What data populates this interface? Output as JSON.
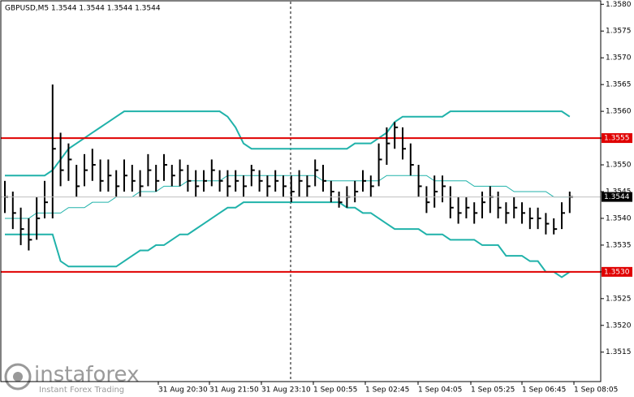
{
  "chart_data": {
    "type": "ohlc",
    "title": "GBPUSD,M5 1.3544 1.3544 1.3544 1.3544",
    "bar_color": "#000000",
    "high": [
      1.3547,
      1.3545,
      1.3542,
      1.354,
      1.3544,
      1.3547,
      1.3565,
      1.3556,
      1.3554,
      1.355,
      1.3552,
      1.3553,
      1.3551,
      1.3551,
      1.3549,
      1.3551,
      1.355,
      1.3549,
      1.3552,
      1.355,
      1.3552,
      1.355,
      1.3551,
      1.355,
      1.3549,
      1.3549,
      1.3551,
      1.3549,
      1.3549,
      1.3549,
      1.3548,
      1.355,
      1.3549,
      1.3548,
      1.3549,
      1.3548,
      1.3548,
      1.3549,
      1.3548,
      1.3551,
      1.355,
      1.3547,
      1.3545,
      1.3546,
      1.3547,
      1.3549,
      1.3548,
      1.3554,
      1.3557,
      1.3558,
      1.3557,
      1.3554,
      1.355,
      1.3546,
      1.3548,
      1.3548,
      1.3546,
      1.3544,
      1.3544,
      1.3543,
      1.3545,
      1.3546,
      1.3545,
      1.3543,
      1.3544,
      1.3543,
      1.3542,
      1.3542,
      1.3541,
      1.354,
      1.3543,
      1.3545
    ],
    "low": [
      1.3541,
      1.3538,
      1.3535,
      1.3534,
      1.3536,
      1.354,
      1.354,
      1.3546,
      1.3547,
      1.3544,
      1.3546,
      1.3547,
      1.3545,
      1.3545,
      1.3544,
      1.3545,
      1.3545,
      1.3544,
      1.3546,
      1.3545,
      1.3547,
      1.3546,
      1.3546,
      1.3545,
      1.3544,
      1.3545,
      1.3546,
      1.3545,
      1.3544,
      1.3545,
      1.3544,
      1.3546,
      1.3545,
      1.3544,
      1.3545,
      1.3544,
      1.3543,
      1.3544,
      1.3544,
      1.3546,
      1.3545,
      1.3543,
      1.3542,
      1.3542,
      1.3543,
      1.3545,
      1.3544,
      1.3546,
      1.355,
      1.3553,
      1.3551,
      1.3548,
      1.3544,
      1.3541,
      1.3542,
      1.3543,
      1.354,
      1.3539,
      1.354,
      1.3539,
      1.354,
      1.3541,
      1.354,
      1.3539,
      1.354,
      1.3539,
      1.3538,
      1.3538,
      1.3537,
      1.3537,
      1.3538,
      1.3541
    ],
    "close": [
      1.3544,
      1.3541,
      1.3538,
      1.3536,
      1.354,
      1.3543,
      1.3553,
      1.3549,
      1.3551,
      1.3546,
      1.3549,
      1.355,
      1.3547,
      1.3548,
      1.3546,
      1.3548,
      1.3547,
      1.3546,
      1.3549,
      1.3547,
      1.355,
      1.3548,
      1.3549,
      1.3547,
      1.3546,
      1.3547,
      1.3549,
      1.3547,
      1.3546,
      1.3547,
      1.3546,
      1.3549,
      1.3547,
      1.3546,
      1.3547,
      1.3546,
      1.3545,
      1.3547,
      1.3546,
      1.3549,
      1.3547,
      1.3545,
      1.3543,
      1.3544,
      1.3545,
      1.3547,
      1.3546,
      1.3551,
      1.3554,
      1.3557,
      1.3553,
      1.355,
      1.3546,
      1.3543,
      1.3545,
      1.3546,
      1.3542,
      1.3541,
      1.3542,
      1.3541,
      1.3543,
      1.3544,
      1.3542,
      1.3541,
      1.3542,
      1.3541,
      1.354,
      1.354,
      1.3539,
      1.3538,
      1.3541,
      1.3544
    ],
    "bands": {
      "color": "#20b2aa",
      "upper": [
        1.3548,
        1.3548,
        1.3548,
        1.3548,
        1.3548,
        1.3548,
        1.3549,
        1.3551,
        1.3553,
        1.3554,
        1.3555,
        1.3556,
        1.3557,
        1.3558,
        1.3559,
        1.356,
        1.356,
        1.356,
        1.356,
        1.356,
        1.356,
        1.356,
        1.356,
        1.356,
        1.356,
        1.356,
        1.356,
        1.356,
        1.3559,
        1.3557,
        1.3554,
        1.3553,
        1.3553,
        1.3553,
        1.3553,
        1.3553,
        1.3553,
        1.3553,
        1.3553,
        1.3553,
        1.3553,
        1.3553,
        1.3553,
        1.3553,
        1.3554,
        1.3554,
        1.3554,
        1.3555,
        1.3556,
        1.3558,
        1.3559,
        1.3559,
        1.3559,
        1.3559,
        1.3559,
        1.3559,
        1.356,
        1.356,
        1.356,
        1.356,
        1.356,
        1.356,
        1.356,
        1.356,
        1.356,
        1.356,
        1.356,
        1.356,
        1.356,
        1.356,
        1.356,
        1.3559
      ],
      "middle": [
        1.354,
        1.354,
        1.354,
        1.354,
        1.3541,
        1.3541,
        1.3541,
        1.3541,
        1.3542,
        1.3542,
        1.3542,
        1.3543,
        1.3543,
        1.3543,
        1.3544,
        1.3544,
        1.3544,
        1.3545,
        1.3545,
        1.3545,
        1.3546,
        1.3546,
        1.3546,
        1.3547,
        1.3547,
        1.3547,
        1.3547,
        1.3547,
        1.3548,
        1.3548,
        1.3548,
        1.3548,
        1.3548,
        1.3548,
        1.3548,
        1.3548,
        1.3548,
        1.3548,
        1.3548,
        1.3548,
        1.3547,
        1.3547,
        1.3547,
        1.3547,
        1.3547,
        1.3547,
        1.3547,
        1.3547,
        1.3548,
        1.3548,
        1.3548,
        1.3548,
        1.3548,
        1.3548,
        1.3547,
        1.3547,
        1.3547,
        1.3547,
        1.3547,
        1.3546,
        1.3546,
        1.3546,
        1.3546,
        1.3546,
        1.3545,
        1.3545,
        1.3545,
        1.3545,
        1.3545,
        1.3544,
        1.3544,
        1.3544
      ],
      "lower": [
        1.3537,
        1.3537,
        1.3537,
        1.3537,
        1.3537,
        1.3537,
        1.3537,
        1.3532,
        1.3531,
        1.3531,
        1.3531,
        1.3531,
        1.3531,
        1.3531,
        1.3531,
        1.3532,
        1.3533,
        1.3534,
        1.3534,
        1.3535,
        1.3535,
        1.3536,
        1.3537,
        1.3537,
        1.3538,
        1.3539,
        1.354,
        1.3541,
        1.3542,
        1.3542,
        1.3543,
        1.3543,
        1.3543,
        1.3543,
        1.3543,
        1.3543,
        1.3543,
        1.3543,
        1.3543,
        1.3543,
        1.3543,
        1.3543,
        1.3543,
        1.3542,
        1.3542,
        1.3541,
        1.3541,
        1.354,
        1.3539,
        1.3538,
        1.3538,
        1.3538,
        1.3538,
        1.3537,
        1.3537,
        1.3537,
        1.3536,
        1.3536,
        1.3536,
        1.3536,
        1.3535,
        1.3535,
        1.3535,
        1.3533,
        1.3533,
        1.3533,
        1.3532,
        1.3532,
        1.353,
        1.353,
        1.3529,
        1.353
      ]
    },
    "levels": [
      1.3555,
      {
        "value": 1.353,
        "label": "1.3530"
      }
    ],
    "level_color": "#e00000",
    "last": 1.3544,
    "ylim": [
      1.35095,
      1.35808
    ],
    "yticks": [
      {
        "value": 1.358,
        "label": "1.3580"
      },
      1.3575,
      {
        "value": 1.357,
        "label": "1.3570"
      },
      1.3565,
      {
        "value": 1.356,
        "label": "1.3560"
      },
      1.3555,
      {
        "value": 1.355,
        "label": "1.3550"
      },
      1.3545,
      {
        "value": 1.354,
        "label": "1.3540"
      },
      1.3535,
      {
        "value": 1.353,
        "label": "1.3530"
      },
      1.3525,
      {
        "value": 1.352,
        "label": "1.3520"
      },
      1.3515
    ],
    "xtick_labels": [
      "31 Aug 20:30",
      "31 Aug 21:50",
      "31 Aug 23:10",
      "1 Sep 00:55",
      "1 Sep 02:45",
      "1 Sep 04:05",
      "1 Sep 05:25",
      "1 Sep 06:45",
      "1 Sep 08:05"
    ],
    "watermark": {
      "brand": "instaforex",
      "slogan": "Instant Forex Trading"
    }
  }
}
